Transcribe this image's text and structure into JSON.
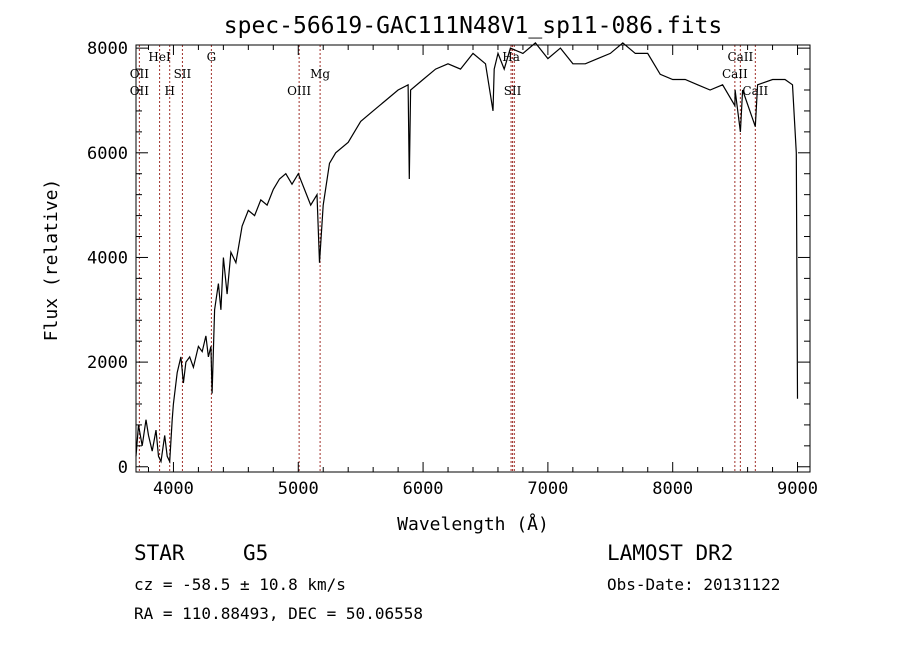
{
  "chart_data": {
    "type": "line",
    "title": "spec-56619-GAC111N48V1_sp11-086.fits",
    "xlabel": "Wavelength (Å)",
    "ylabel": "Flux (relative)",
    "xlim": [
      3700,
      9100
    ],
    "ylim": [
      -100,
      8060
    ],
    "xticks": [
      4000,
      5000,
      6000,
      7000,
      8000,
      9000
    ],
    "xtick_labels": [
      "4000",
      "5000",
      "6000",
      "7000",
      "8000",
      "9000"
    ],
    "yticks": [
      0,
      2000,
      4000,
      6000,
      8000
    ],
    "ytick_labels": [
      "0",
      "2000",
      "4000",
      "6000",
      "8000"
    ],
    "grid": false,
    "series": [
      {
        "name": "spectrum",
        "color": "#000000",
        "x": [
          3700,
          3720,
          3750,
          3780,
          3800,
          3830,
          3860,
          3880,
          3900,
          3930,
          3950,
          3970,
          3990,
          4000,
          4030,
          4060,
          4080,
          4100,
          4130,
          4160,
          4200,
          4230,
          4260,
          4280,
          4300,
          4310,
          4330,
          4360,
          4380,
          4400,
          4430,
          4460,
          4500,
          4550,
          4600,
          4650,
          4700,
          4750,
          4800,
          4850,
          4900,
          4950,
          5000,
          5050,
          5100,
          5150,
          5170,
          5200,
          5250,
          5300,
          5400,
          5500,
          5600,
          5700,
          5800,
          5880,
          5890,
          5900,
          6000,
          6100,
          6200,
          6300,
          6400,
          6500,
          6560,
          6570,
          6600,
          6650,
          6700,
          6800,
          6900,
          7000,
          7100,
          7200,
          7300,
          7400,
          7500,
          7600,
          7700,
          7800,
          7900,
          8000,
          8100,
          8200,
          8300,
          8400,
          8498,
          8500,
          8542,
          8560,
          8662,
          8680,
          8800,
          8900,
          8960,
          8990,
          9000
        ],
        "y": [
          200,
          800,
          400,
          900,
          600,
          300,
          700,
          200,
          100,
          600,
          200,
          100,
          900,
          1200,
          1800,
          2100,
          1600,
          2000,
          2100,
          1900,
          2300,
          2200,
          2500,
          2100,
          2300,
          1400,
          3000,
          3500,
          3000,
          4000,
          3300,
          4100,
          3900,
          4600,
          4900,
          4800,
          5100,
          5000,
          5300,
          5500,
          5600,
          5400,
          5600,
          5300,
          5000,
          5200,
          3900,
          5000,
          5800,
          6000,
          6200,
          6600,
          6800,
          7000,
          7200,
          7300,
          5500,
          7200,
          7400,
          7600,
          7700,
          7600,
          7900,
          7700,
          6800,
          7600,
          7900,
          7600,
          8000,
          7900,
          8100,
          7800,
          8000,
          7700,
          7700,
          7800,
          7900,
          8100,
          7900,
          7900,
          7500,
          7400,
          7400,
          7300,
          7200,
          7300,
          6900,
          7200,
          6400,
          7200,
          6500,
          7300,
          7400,
          7400,
          7300,
          6000,
          1300
        ]
      }
    ],
    "line_color": "#a0302a",
    "annotations": [
      {
        "label": "OII",
        "wavelength": 3727,
        "row": 2
      },
      {
        "label": "OII",
        "wavelength": 3727,
        "row": 3
      },
      {
        "label": "HeI",
        "wavelength": 3889,
        "row": 1
      },
      {
        "label": "H",
        "wavelength": 3970,
        "row": 3
      },
      {
        "label": "SII",
        "wavelength": 4072,
        "row": 2
      },
      {
        "label": "G",
        "wavelength": 4304,
        "row": 1
      },
      {
        "label": "OIII",
        "wavelength": 5007,
        "row": 3
      },
      {
        "label": "Mg",
        "wavelength": 5175,
        "row": 2
      },
      {
        "label": "Ha",
        "wavelength": 6705,
        "row": 1
      },
      {
        "label": "SII",
        "wavelength": 6717,
        "row": 3
      },
      {
        "label": "CaII",
        "wavelength": 8542,
        "row": 1
      },
      {
        "label": "CaII",
        "wavelength": 8498,
        "row": 2
      },
      {
        "label": "CaII",
        "wavelength": 8662,
        "row": 3
      }
    ],
    "extra_lines": [
      6731
    ]
  },
  "info": {
    "class": "STAR",
    "subclass": "G5",
    "survey": "LAMOST DR2",
    "cz": "cz = -58.5 ± 10.8 km/s",
    "obs_date": "Obs-Date: 20131122",
    "coords": "RA = 110.88493, DEC =  50.06558"
  }
}
